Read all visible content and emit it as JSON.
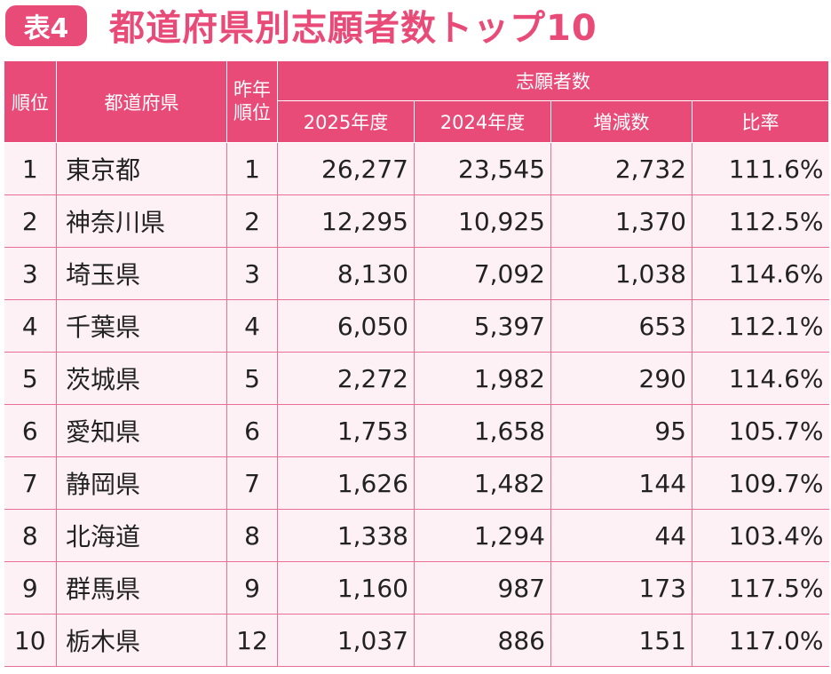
{
  "header": {
    "badge": "表4",
    "title": "都道府県別志願者数トップ10"
  },
  "colors": {
    "accent": "#e94b79",
    "row_bg": "#fdf1f5",
    "rule": "#ea6f94"
  },
  "table": {
    "col_rank": "順位",
    "col_pref": "都道府県",
    "col_prev_rank": "昨年順位",
    "group_header": "志願者数",
    "col_2025": "2025年度",
    "col_2024": "2024年度",
    "col_diff": "増減数",
    "col_ratio": "比率",
    "rows": [
      {
        "rank": "1",
        "pref": "東京都",
        "prev": "1",
        "y2025": "26,277",
        "y2024": "23,545",
        "diff": "2,732",
        "ratio": "111.6%"
      },
      {
        "rank": "2",
        "pref": "神奈川県",
        "prev": "2",
        "y2025": "12,295",
        "y2024": "10,925",
        "diff": "1,370",
        "ratio": "112.5%"
      },
      {
        "rank": "3",
        "pref": "埼玉県",
        "prev": "3",
        "y2025": "8,130",
        "y2024": "7,092",
        "diff": "1,038",
        "ratio": "114.6%"
      },
      {
        "rank": "4",
        "pref": "千葉県",
        "prev": "4",
        "y2025": "6,050",
        "y2024": "5,397",
        "diff": "653",
        "ratio": "112.1%"
      },
      {
        "rank": "5",
        "pref": "茨城県",
        "prev": "5",
        "y2025": "2,272",
        "y2024": "1,982",
        "diff": "290",
        "ratio": "114.6%"
      },
      {
        "rank": "6",
        "pref": "愛知県",
        "prev": "6",
        "y2025": "1,753",
        "y2024": "1,658",
        "diff": "95",
        "ratio": "105.7%"
      },
      {
        "rank": "7",
        "pref": "静岡県",
        "prev": "7",
        "y2025": "1,626",
        "y2024": "1,482",
        "diff": "144",
        "ratio": "109.7%"
      },
      {
        "rank": "8",
        "pref": "北海道",
        "prev": "8",
        "y2025": "1,338",
        "y2024": "1,294",
        "diff": "44",
        "ratio": "103.4%"
      },
      {
        "rank": "9",
        "pref": "群馬県",
        "prev": "9",
        "y2025": "1,160",
        "y2024": "987",
        "diff": "173",
        "ratio": "117.5%"
      },
      {
        "rank": "10",
        "pref": "栃木県",
        "prev": "12",
        "y2025": "1,037",
        "y2024": "886",
        "diff": "151",
        "ratio": "117.0%"
      }
    ]
  }
}
